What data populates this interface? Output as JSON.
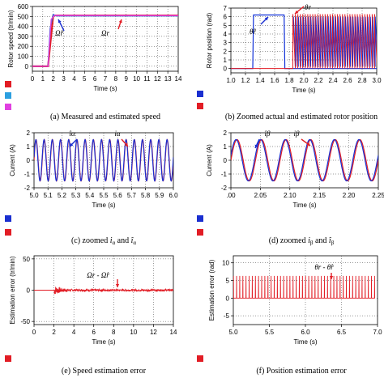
{
  "chart_data": [
    {
      "id": "a",
      "type": "line",
      "caption": "(a) Measured and estimated speed",
      "ylabel": "Rotor speed (tr/min)",
      "xlabel": "Time (s)",
      "xlim": [
        0,
        14
      ],
      "ylim": [
        -50,
        600
      ],
      "xticks": [
        "0",
        "1",
        "2",
        "3",
        "4",
        "5",
        "6",
        "7",
        "8",
        "9",
        "10",
        "11",
        "12",
        "13",
        "14"
      ],
      "yticks": [
        "0",
        "100",
        "200",
        "300",
        "400",
        "500",
        "600"
      ],
      "annotations": [
        "Ω̂r",
        "Ωr"
      ],
      "grid": true,
      "series": [
        {
          "color": "#e21d25",
          "x": [
            0,
            1.5,
            2.0,
            2.2,
            14
          ],
          "y": [
            0,
            0,
            510,
            510,
            510
          ]
        },
        {
          "color": "#2c6fd6",
          "x": [
            0,
            1.5,
            1.7,
            2.0,
            2.3,
            14
          ],
          "y": [
            0,
            0,
            380,
            520,
            505,
            505
          ]
        },
        {
          "color": "#e040e0",
          "x": [
            0,
            1.5,
            1.8,
            2.1,
            14
          ],
          "y": [
            0,
            0,
            470,
            510,
            508
          ]
        }
      ],
      "legend_colors": [
        "#e21d25",
        "#2c9fe0",
        "#e040e0"
      ]
    },
    {
      "id": "b",
      "type": "line",
      "caption": "(b) Zoomed actual and estimated rotor position",
      "ylabel": "Rotor position (rad)",
      "xlabel": "Time (s)",
      "xlim": [
        1.0,
        3.0
      ],
      "ylim": [
        -0.5,
        7
      ],
      "xticks": [
        "1.0",
        "1.2",
        "1.4",
        "1.6",
        "1.8",
        "2.0",
        "2.2",
        "2.4",
        "2.6",
        "2.8",
        "3.0"
      ],
      "yticks": [
        "0",
        "1",
        "2",
        "3",
        "4",
        "5",
        "6",
        "7"
      ],
      "annotations": [
        "θ̂r",
        "θr"
      ],
      "grid": true,
      "sawtooth_period_s": 0.034,
      "sawtooth_start_s": 1.85,
      "estimated_block": {
        "x": [
          1.0,
          1.3,
          1.31,
          1.73,
          1.74,
          3.0
        ],
        "y": [
          0,
          0,
          6.2,
          6.2,
          0,
          0
        ]
      },
      "series": [
        {
          "name": "",
          "color": "#e21d25"
        },
        {
          "name": "",
          "color": "#1030d8"
        }
      ],
      "legend_colors": [
        "#1a2fd0",
        "#e21d25"
      ]
    },
    {
      "id": "c",
      "type": "line",
      "caption": "(c) zoomed iα and îα",
      "caption_parts": [
        "(c) zoomed ",
        "i",
        "α",
        " and ",
        "î",
        "α"
      ],
      "ylabel": "Current (A)",
      "xlabel": "Time (s)",
      "xlim": [
        5.0,
        6.0
      ],
      "ylim": [
        -2,
        2
      ],
      "xticks": [
        "5.0",
        "5.1",
        "5.2",
        "5.3",
        "5.4",
        "5.5",
        "5.6",
        "5.7",
        "5.8",
        "5.9",
        "6.0"
      ],
      "yticks": [
        "-2",
        "-1",
        "0",
        "1",
        "2"
      ],
      "annotations": [
        "îα",
        "iα"
      ],
      "grid": true,
      "amplitude": 1.5,
      "frequency_hz": 17,
      "series": [
        {
          "name": "",
          "color": "#e21d25",
          "phase": 0
        },
        {
          "name": "",
          "color": "#1a2fd0",
          "phase": 0.15
        }
      ],
      "legend_colors": [
        "#1a2fd0",
        "#e21d25"
      ]
    },
    {
      "id": "d",
      "type": "line",
      "caption": "(d) zoomed iβ and îβ",
      "caption_parts": [
        "(d) zoomed ",
        "i",
        "β",
        " and ",
        "î",
        "β"
      ],
      "ylabel": "Current (A)",
      "xlabel": "Time (s)",
      "xlim": [
        2.0,
        2.3
      ],
      "ylim": [
        -2,
        2
      ],
      "xticks": [
        ".00",
        "2.05",
        "2.10",
        "2.15",
        "2.20",
        "2.25"
      ],
      "yticks": [
        "-2",
        "-1",
        "0",
        "1",
        "2"
      ],
      "annotations": [
        "îβ",
        "iβ"
      ],
      "grid": true,
      "amplitude": 1.5,
      "frequency_hz": 20,
      "series": [
        {
          "name": "",
          "color": "#e21d25",
          "phase": 0
        },
        {
          "name": "",
          "color": "#1a2fd0",
          "phase": 0.25
        }
      ],
      "legend_colors": [
        "#1a2fd0",
        "#e21d25"
      ]
    },
    {
      "id": "e",
      "type": "line",
      "caption": "(e) Speed estimation error",
      "ylabel": "Estimation error (tr/min)",
      "xlabel": "Time (s)",
      "xlim": [
        0,
        14
      ],
      "ylim": [
        -55,
        55
      ],
      "xticks": [
        "0",
        "2",
        "4",
        "6",
        "8",
        "10",
        "12",
        "14"
      ],
      "yticks": [
        "-50",
        "0",
        "50"
      ],
      "annotations": [
        "Ωr - Ω̂r"
      ],
      "grid": true,
      "series": [
        {
          "name": "",
          "color": "#e21d25",
          "noise_amplitude": 1.5,
          "transient_x": 2.0,
          "transient_amplitude": 7
        }
      ],
      "legend_colors": [
        "#e21d25"
      ]
    },
    {
      "id": "f",
      "type": "line",
      "caption": "(f) Position estimation error",
      "ylabel": "Estimation error (rad)",
      "xlabel": "Time (s)",
      "xlim": [
        5.0,
        7.0
      ],
      "ylim": [
        -7.5,
        12
      ],
      "xticks": [
        "5.0",
        "5.5",
        "6.0",
        "6.5",
        "7.0"
      ],
      "yticks": [
        "-5",
        "0",
        "5",
        "10"
      ],
      "annotations": [
        "θr - θ̂r"
      ],
      "grid": true,
      "spike_period_s": 0.0435,
      "spike_height": 6.3,
      "series": [
        {
          "name": "",
          "color": "#e21d25"
        }
      ],
      "legend_colors": [
        "#e21d25"
      ]
    }
  ]
}
